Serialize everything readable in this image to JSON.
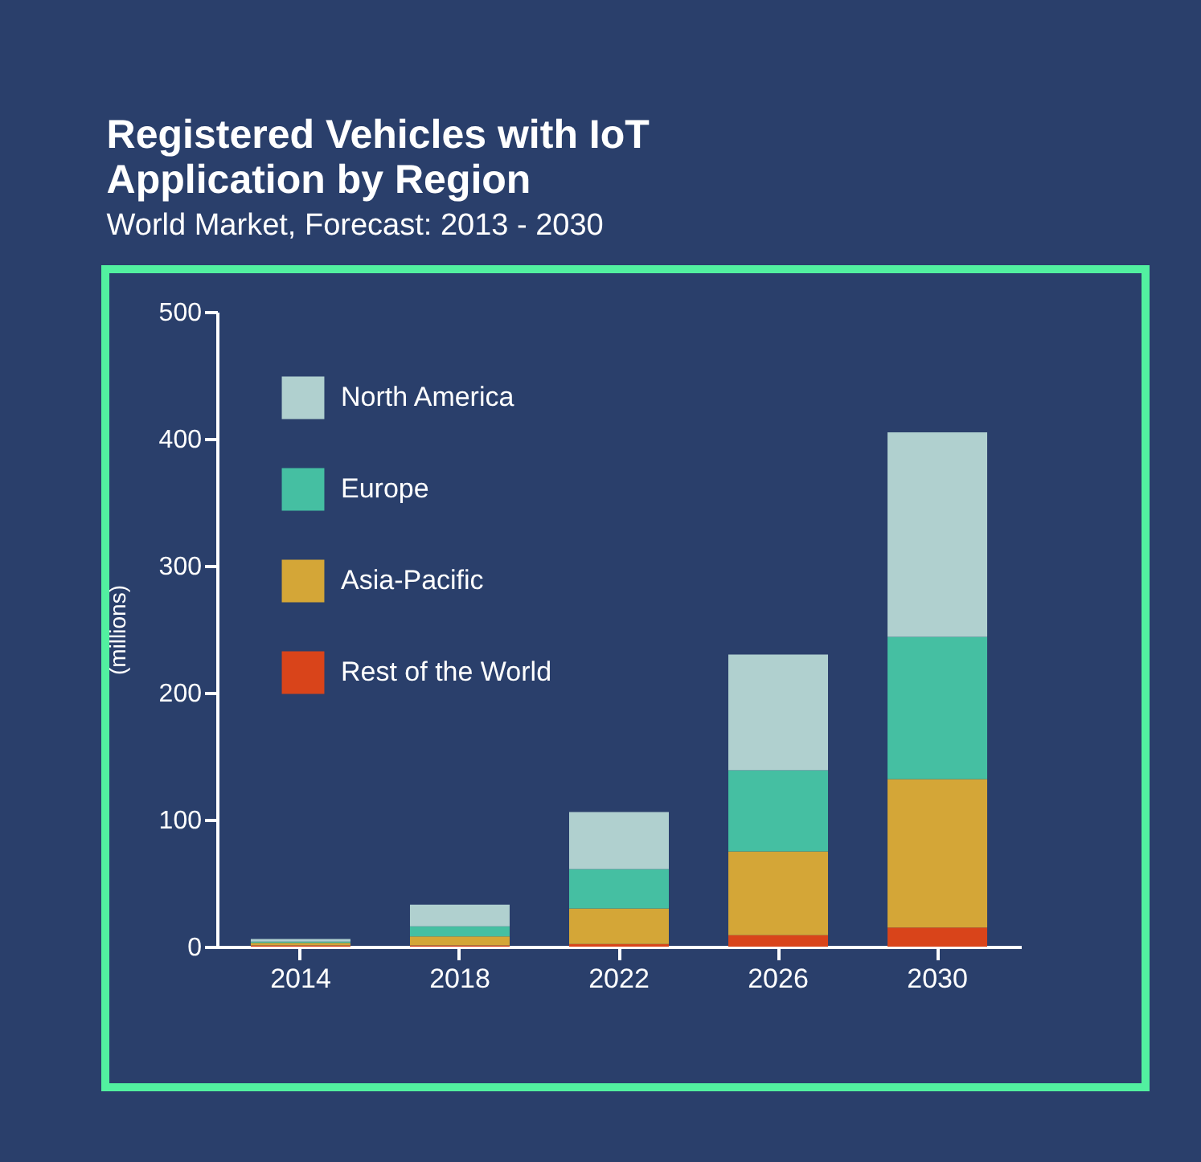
{
  "chart_data": {
    "type": "bar",
    "title": "Registered Vehicles with IoT Application by Region",
    "subtitle": "World Market, Forecast: 2013 - 2030",
    "ylabel": "(millions)",
    "categories": [
      "2014",
      "2018",
      "2022",
      "2026",
      "2030"
    ],
    "stacked": true,
    "series": [
      {
        "name": "Rest of the World",
        "color": "#d9441a",
        "values": [
          1,
          1,
          2,
          9,
          15
        ]
      },
      {
        "name": "Asia-Pacific",
        "color": "#d4a637",
        "values": [
          2,
          7,
          28,
          66,
          117
        ]
      },
      {
        "name": "Europe",
        "color": "#45bfa2",
        "values": [
          1,
          8,
          31,
          64,
          112
        ]
      },
      {
        "name": "North America",
        "color": "#b0d0cf",
        "values": [
          2,
          17,
          45,
          91,
          161
        ]
      }
    ],
    "ylim": [
      0,
      500
    ],
    "yticks": [
      0,
      100,
      200,
      300,
      400,
      500
    ],
    "grid": false,
    "legend": "top left"
  }
}
